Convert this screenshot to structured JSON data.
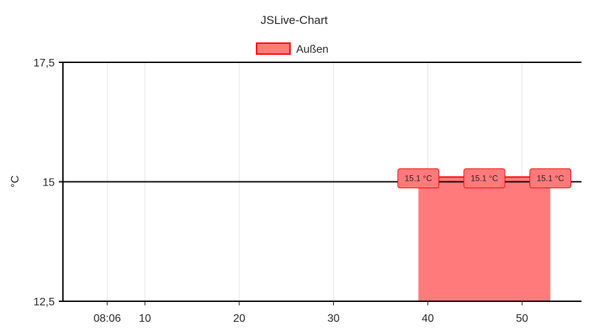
{
  "chart_data": {
    "type": "area",
    "title": "JSLive-Chart",
    "ylabel": "°C",
    "xlabel": "",
    "ylim": [
      12.5,
      17.5
    ],
    "xlim": [
      1.3,
      56.3
    ],
    "y_ticks": [
      {
        "value": 12.5,
        "label": "12,5"
      },
      {
        "value": 15,
        "label": "15"
      },
      {
        "value": 17.5,
        "label": "17,5"
      }
    ],
    "x_ticks": [
      {
        "value": 6,
        "label": "08:06"
      },
      {
        "value": 10,
        "label": "10"
      },
      {
        "value": 20,
        "label": "20"
      },
      {
        "value": 30,
        "label": "30"
      },
      {
        "value": 40,
        "label": "40"
      },
      {
        "value": 50,
        "label": "50"
      }
    ],
    "grid": true,
    "legend_position": "top",
    "series": [
      {
        "name": "Außen",
        "color": "#ff0000",
        "fill_color": "#ff7b7b",
        "x": [
          39,
          46,
          53
        ],
        "y": [
          15.1,
          15.1,
          15.1
        ],
        "labels": [
          "15.1 °C",
          "15.1 °C",
          "15.1 °C"
        ]
      }
    ]
  }
}
